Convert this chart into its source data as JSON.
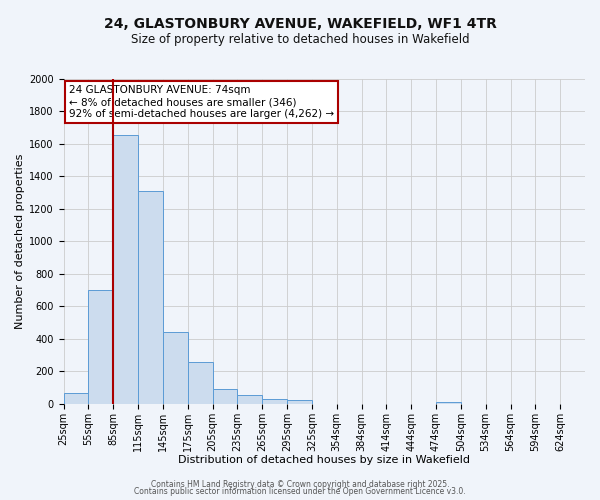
{
  "title": "24, GLASTONBURY AVENUE, WAKEFIELD, WF1 4TR",
  "subtitle": "Size of property relative to detached houses in Wakefield",
  "xlabel": "Distribution of detached houses by size in Wakefield",
  "ylabel": "Number of detached properties",
  "bar_values": [
    65,
    700,
    1655,
    1310,
    440,
    255,
    90,
    55,
    30,
    25,
    0,
    0,
    0,
    0,
    0,
    10,
    0,
    0,
    0,
    0,
    0
  ],
  "categories": [
    "25sqm",
    "55sqm",
    "85sqm",
    "115sqm",
    "145sqm",
    "175sqm",
    "205sqm",
    "235sqm",
    "265sqm",
    "295sqm",
    "325sqm",
    "354sqm",
    "384sqm",
    "414sqm",
    "444sqm",
    "474sqm",
    "504sqm",
    "534sqm",
    "564sqm",
    "594sqm",
    "624sqm"
  ],
  "bar_color": "#ccdcee",
  "bar_edge_color": "#5b9bd5",
  "vline_color": "#aa0000",
  "vline_x": 2.0,
  "ylim": [
    0,
    2000
  ],
  "yticks": [
    0,
    200,
    400,
    600,
    800,
    1000,
    1200,
    1400,
    1600,
    1800,
    2000
  ],
  "annotation_line1": "24 GLASTONBURY AVENUE: 74sqm",
  "annotation_line2": "← 8% of detached houses are smaller (346)",
  "annotation_line3": "92% of semi-detached houses are larger (4,262) →",
  "annotation_box_color": "#ffffff",
  "annotation_box_edge": "#aa0000",
  "footer1": "Contains HM Land Registry data © Crown copyright and database right 2025.",
  "footer2": "Contains public sector information licensed under the Open Government Licence v3.0.",
  "background_color": "#f0f4fa",
  "plot_background": "#f0f4fa",
  "title_fontsize": 10,
  "subtitle_fontsize": 8.5,
  "ylabel_fontsize": 8,
  "xlabel_fontsize": 8,
  "tick_fontsize": 7,
  "ann_fontsize": 7.5,
  "footer_fontsize": 5.5
}
